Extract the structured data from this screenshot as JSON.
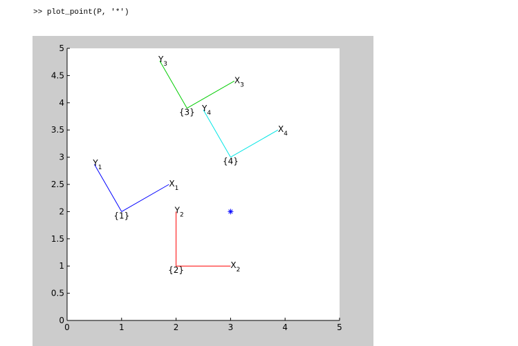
{
  "command": {
    "prompt": ">>",
    "text": "plot_point(P, '*')"
  },
  "chart_data": {
    "type": "scatter",
    "xlim": [
      0,
      5
    ],
    "ylim": [
      0,
      5
    ],
    "xticks": [
      "0",
      "1",
      "2",
      "3",
      "4",
      "5"
    ],
    "yticks": [
      "0",
      "0.5",
      "1",
      "1.5",
      "2",
      "2.5",
      "3",
      "3.5",
      "4",
      "4.5",
      "5"
    ],
    "grid": false,
    "frames": [
      {
        "label": "{1}",
        "color": "#0000ff",
        "origin": [
          1.0,
          2.0
        ],
        "x_end": [
          1.87,
          2.5
        ],
        "y_end": [
          0.5,
          2.87
        ],
        "x_label": "X",
        "x_sub": "1",
        "y_label": "Y",
        "y_sub": "1"
      },
      {
        "label": "{2}",
        "color": "#ff0000",
        "origin": [
          2.0,
          1.0
        ],
        "x_end": [
          3.0,
          1.0
        ],
        "y_end": [
          2.0,
          2.0
        ],
        "x_label": "X",
        "x_sub": "2",
        "y_label": "Y",
        "y_sub": "2"
      },
      {
        "label": "{3}",
        "color": "#00cc00",
        "origin": [
          2.2,
          3.9
        ],
        "x_end": [
          3.07,
          4.4
        ],
        "y_end": [
          1.7,
          4.77
        ],
        "x_label": "X",
        "x_sub": "3",
        "y_label": "Y",
        "y_sub": "3"
      },
      {
        "label": "{4}",
        "color": "#00e5e5",
        "origin": [
          3.0,
          3.0
        ],
        "x_end": [
          3.87,
          3.5
        ],
        "y_end": [
          2.5,
          3.87
        ],
        "x_label": "X",
        "x_sub": "4",
        "y_label": "Y",
        "y_sub": "4"
      }
    ],
    "points": [
      {
        "x": 3.0,
        "y": 2.0,
        "marker": "*",
        "color": "#0000ff"
      }
    ]
  }
}
